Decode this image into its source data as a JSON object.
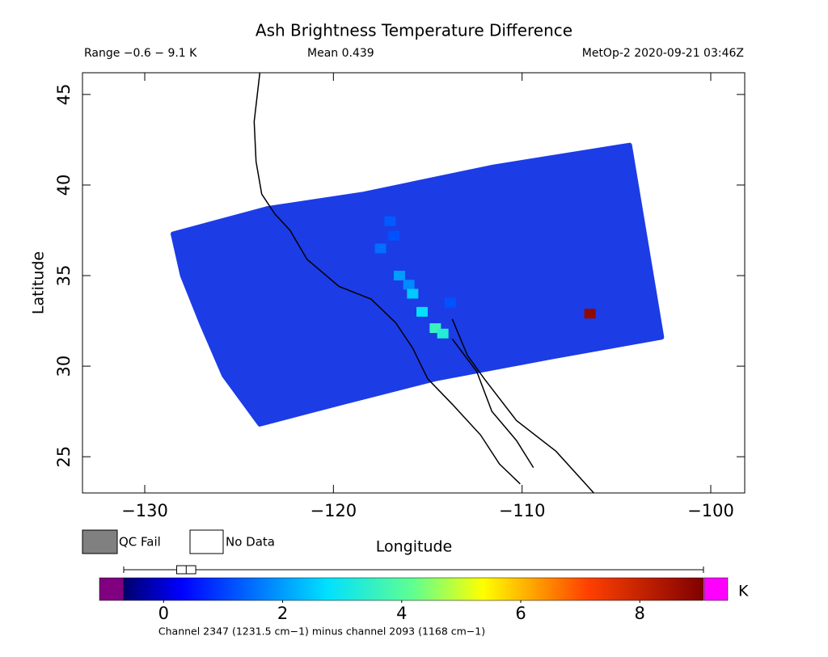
{
  "chart_data": {
    "type": "swath-map",
    "title": "Ash Brightness Temperature Difference",
    "range_label": "Range −0.6 − 9.1 K",
    "mean_label": "Mean 0.439",
    "source_label": "MetOp-2 2020-09-21 03:46Z",
    "x_label": "Longitude",
    "y_label": "Latitude",
    "xlim": [
      -133.3,
      -98.2
    ],
    "ylim": [
      23.0,
      46.2
    ],
    "xticks": [
      {
        "value": -130,
        "label": "−130"
      },
      {
        "value": -120,
        "label": "−120"
      },
      {
        "value": -110,
        "label": "−110"
      },
      {
        "value": -100,
        "label": "−100"
      }
    ],
    "yticks": [
      25,
      30,
      35,
      40,
      45
    ],
    "swath": {
      "color": "#1c3ce6",
      "x": [
        -128.5,
        -123.5,
        -118.4,
        -111.5,
        -104.3,
        -102.6,
        -108.5,
        -114.6,
        -119.5,
        -123.9,
        -125.8,
        -127.0,
        -128.0
      ],
      "y": [
        37.3,
        38.7,
        39.5,
        41.0,
        42.2,
        31.6,
        30.5,
        29.3,
        28.0,
        26.8,
        29.5,
        32.4,
        35.0
      ]
    },
    "cells": {
      "x": [
        -117.0,
        -117.5,
        -116.5,
        -116.0,
        -115.8,
        -115.3,
        -114.6,
        -114.2,
        -116.8,
        -113.8,
        -106.4
      ],
      "y": [
        38.0,
        36.5,
        35.0,
        34.5,
        34.0,
        33.0,
        32.1,
        31.8,
        37.2,
        33.5,
        32.9
      ],
      "values": [
        1.3,
        1.5,
        2.0,
        1.8,
        2.5,
        2.8,
        3.6,
        3.3,
        1.2,
        1.2,
        8.8
      ]
    },
    "coastlines": [
      {
        "x": [
          -123.9,
          -124.2,
          -124.1,
          -123.8,
          -123.1,
          -122.3,
          -121.4,
          -119.7,
          -118.0,
          -116.7,
          -115.8,
          -115.0,
          -113.7,
          -112.2,
          -111.2,
          -110.1
        ],
        "y": [
          46.2,
          43.5,
          41.3,
          39.5,
          38.4,
          37.5,
          35.9,
          34.4,
          33.7,
          32.4,
          31.0,
          29.3,
          27.9,
          26.2,
          24.6,
          23.5
        ]
      },
      {
        "x": [
          -113.7,
          -112.4,
          -111.6,
          -110.3,
          -109.4
        ],
        "y": [
          31.5,
          29.7,
          27.5,
          25.9,
          24.4
        ]
      },
      {
        "x": [
          -113.7,
          -112.9,
          -112.0,
          -110.3,
          -108.2,
          -106.2
        ],
        "y": [
          32.6,
          30.6,
          29.3,
          27.0,
          25.3,
          23.0
        ]
      }
    ],
    "qc_fail_label": "QC Fail",
    "no_data_label": "No Data",
    "colorbar": {
      "clim": [
        -0.67,
        9.07
      ],
      "ticks": [
        0,
        2,
        4,
        6,
        8
      ],
      "unit": "K",
      "caption": "Channel 2347 (1231.5 cm−1) minus channel 2093 (1168 cm−1)",
      "box": {
        "min": -0.67,
        "q1": 0.22,
        "median": 0.38,
        "q3": 0.54,
        "max": 9.07
      }
    }
  }
}
